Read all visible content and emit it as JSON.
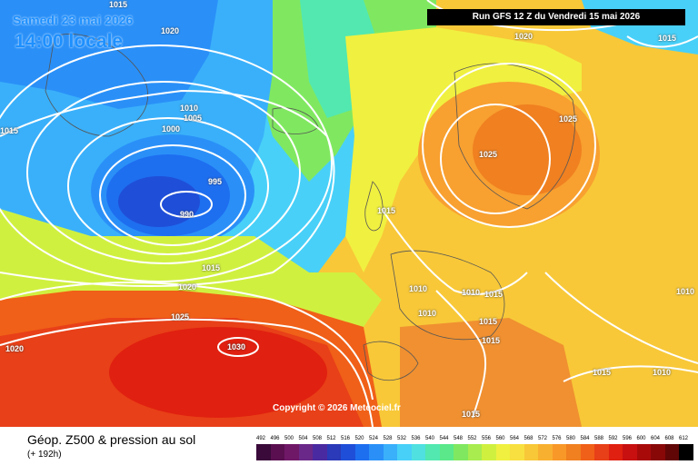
{
  "header": {
    "date": "Samedi 23 mai 2026",
    "time": "14:00 locale",
    "run": "Run GFS 12 Z du Vendredi 15 mai 2026"
  },
  "copyright": "Copyright © 2026 Meteociel.fr",
  "footer": {
    "product": "Géop. Z500 & pression au sol",
    "lead": "(+ 192h)"
  },
  "isobar_labels": [
    {
      "id": "a",
      "text": "1015"
    },
    {
      "id": "b",
      "text": "1020"
    },
    {
      "id": "c",
      "text": "1015"
    },
    {
      "id": "d",
      "text": "1010"
    },
    {
      "id": "e",
      "text": "1005"
    },
    {
      "id": "f",
      "text": "1000"
    },
    {
      "id": "g",
      "text": "995"
    },
    {
      "id": "h",
      "text": "990"
    },
    {
      "id": "i",
      "text": "1015"
    },
    {
      "id": "j",
      "text": "1015"
    },
    {
      "id": "k",
      "text": "1020"
    },
    {
      "id": "l",
      "text": "1025"
    },
    {
      "id": "m",
      "text": "1030"
    },
    {
      "id": "n",
      "text": "1020"
    },
    {
      "id": "o",
      "text": "1020"
    },
    {
      "id": "p",
      "text": "1015"
    },
    {
      "id": "q",
      "text": "1025"
    },
    {
      "id": "r",
      "text": "1025"
    },
    {
      "id": "s",
      "text": "1010"
    },
    {
      "id": "t",
      "text": "1010"
    },
    {
      "id": "u",
      "text": "1010"
    },
    {
      "id": "v",
      "text": "1015"
    },
    {
      "id": "w",
      "text": "1015"
    },
    {
      "id": "x",
      "text": "1015"
    },
    {
      "id": "y",
      "text": "1015"
    },
    {
      "id": "z",
      "text": "1010"
    },
    {
      "id": "aa",
      "text": "1015"
    },
    {
      "id": "ab",
      "text": "1010"
    }
  ],
  "scale": {
    "values": [
      "492",
      "496",
      "500",
      "504",
      "508",
      "512",
      "516",
      "520",
      "524",
      "528",
      "532",
      "536",
      "540",
      "544",
      "548",
      "552",
      "556",
      "560",
      "564",
      "568",
      "572",
      "576",
      "580",
      "584",
      "588",
      "592",
      "596",
      "600",
      "604",
      "608",
      "612"
    ],
    "colors": [
      "#3a0a3a",
      "#5a1050",
      "#701868",
      "#6a2888",
      "#4a2aa0",
      "#2a3ab8",
      "#1f4fd8",
      "#1e6ef0",
      "#2a90f8",
      "#3ab0fa",
      "#48d0f8",
      "#50e0e0",
      "#52e8b0",
      "#5ae88a",
      "#80e860",
      "#a8ec50",
      "#d0f040",
      "#f0f040",
      "#f8e040",
      "#f8c838",
      "#f8b030",
      "#f89828",
      "#f08020",
      "#f06018",
      "#e84018",
      "#e02010",
      "#c81010",
      "#a80a0a",
      "#880808",
      "#600606",
      "#000000"
    ]
  }
}
